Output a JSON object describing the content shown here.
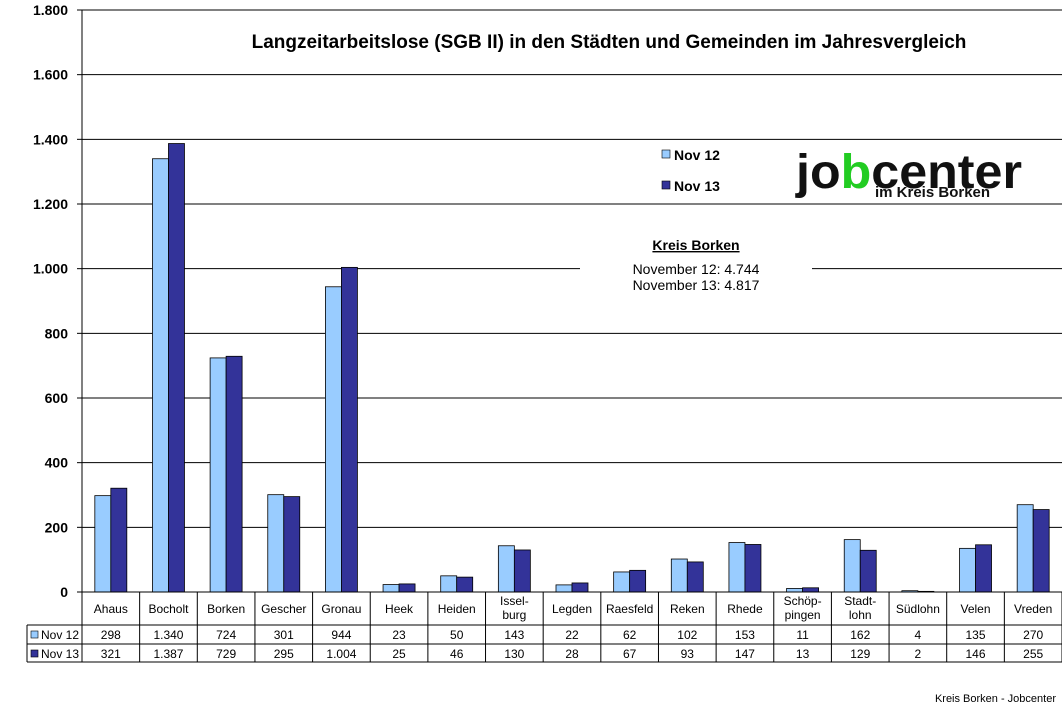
{
  "chart_data": {
    "type": "bar",
    "title": "Langzeitarbeitslose (SGB II) in den Städten und Gemeinden im Jahresvergleich",
    "ylim": [
      0,
      1800
    ],
    "yticks": [
      0,
      200,
      400,
      600,
      800,
      1000,
      1200,
      1400,
      1600,
      1800
    ],
    "ytick_labels": [
      "0",
      "200",
      "400",
      "600",
      "800",
      "1.000",
      "1.200",
      "1.400",
      "1.600",
      "1.800"
    ],
    "grid": true,
    "legend_position": "top-center",
    "categories": [
      [
        "Ahaus"
      ],
      [
        "Bocholt"
      ],
      [
        "Borken"
      ],
      [
        "Gescher"
      ],
      [
        "Gronau"
      ],
      [
        "Heek"
      ],
      [
        "Heiden"
      ],
      [
        "Issel-",
        "burg"
      ],
      [
        "Legden"
      ],
      [
        "Raesfeld"
      ],
      [
        "Reken"
      ],
      [
        "Rhede"
      ],
      [
        "Schöp-",
        "pingen"
      ],
      [
        "Stadt-",
        "lohn"
      ],
      [
        "Südlohn"
      ],
      [
        "Velen"
      ],
      [
        "Vreden"
      ]
    ],
    "series": [
      {
        "name": "Nov 12",
        "color": "#99CCFF",
        "values": [
          298,
          1340,
          724,
          301,
          944,
          23,
          50,
          143,
          22,
          62,
          102,
          153,
          11,
          162,
          4,
          135,
          270
        ],
        "labels": [
          "298",
          "1.340",
          "724",
          "301",
          "944",
          "23",
          "50",
          "143",
          "22",
          "62",
          "102",
          "153",
          "11",
          "162",
          "4",
          "135",
          "270"
        ]
      },
      {
        "name": "Nov 13",
        "color": "#333399",
        "values": [
          321,
          1387,
          729,
          295,
          1004,
          25,
          46,
          130,
          28,
          67,
          93,
          147,
          13,
          129,
          2,
          146,
          255
        ],
        "labels": [
          "321",
          "1.387",
          "729",
          "295",
          "1.004",
          "25",
          "46",
          "130",
          "28",
          "67",
          "93",
          "147",
          "13",
          "129",
          "2",
          "146",
          "255"
        ]
      }
    ]
  },
  "annotation": {
    "heading": "Kreis Borken",
    "line1": "November 12: 4.744",
    "line2": "November 13: 4.817"
  },
  "logo": {
    "main": "jobcenter",
    "sub": "im Kreis Borken",
    "dark_color": "#111111",
    "accent_color": "#22CC22"
  },
  "footer": "Kreis Borken - Jobcenter"
}
